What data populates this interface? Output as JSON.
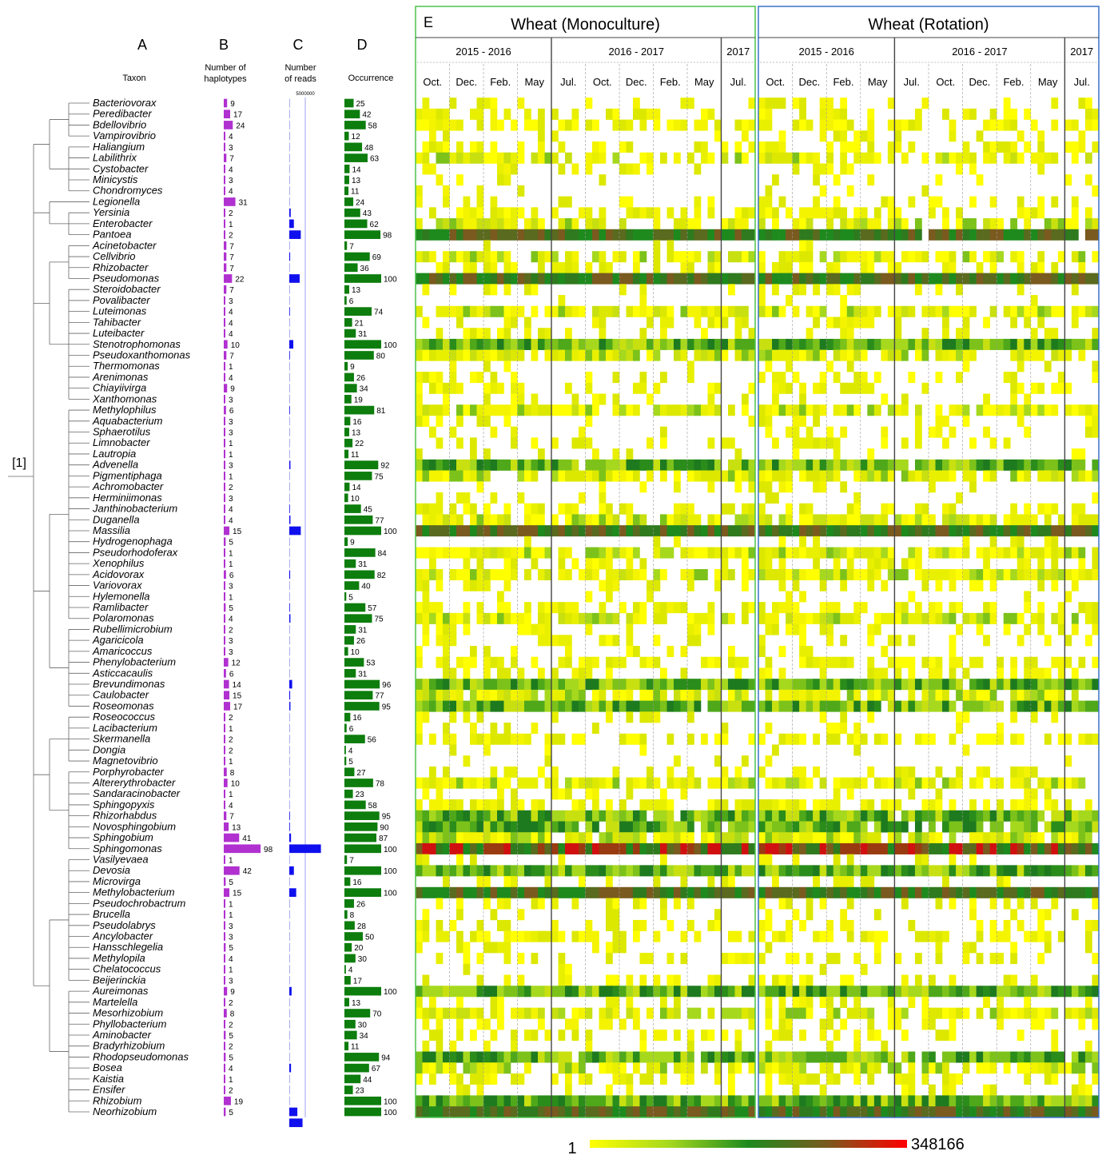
{
  "panels": {
    "a": "A",
    "b": "B",
    "c": "C",
    "d": "D",
    "e": "E"
  },
  "column_headers": {
    "taxon": "Taxon",
    "haplotypes": [
      "Number of",
      "haplotypes"
    ],
    "reads": [
      "Number",
      "of reads"
    ],
    "reads_tick": "5000000",
    "occurrence": "Occurrence"
  },
  "tree_root_label": "[1]",
  "heatmap": {
    "groups": [
      {
        "title": "Wheat (Monoculture)",
        "border_color": "#4cc24c",
        "periods": [
          {
            "label": "2015 - 2016",
            "months": [
              "Oct.",
              "Dec.",
              "Feb.",
              "May"
            ]
          },
          {
            "label": "2016 - 2017",
            "months": [
              "Jul.",
              "Oct.",
              "Dec.",
              "Feb.",
              "May"
            ]
          },
          {
            "label": "2017",
            "months": [
              "Jul."
            ]
          }
        ]
      },
      {
        "title": "Wheat (Rotation)",
        "border_color": "#3a73c8",
        "periods": [
          {
            "label": "2015 - 2016",
            "months": [
              "Oct.",
              "Dec.",
              "Feb.",
              "May"
            ]
          },
          {
            "label": "2016 - 2017",
            "months": [
              "Jul.",
              "Oct.",
              "Dec.",
              "Feb.",
              "May"
            ]
          },
          {
            "label": "2017",
            "months": [
              "Jul."
            ]
          }
        ]
      }
    ],
    "legend": {
      "min_label": "1",
      "max_label": "348166",
      "colors": [
        "#ffff00",
        "#a6d81e",
        "#1e8a1e",
        "#7a5a1e",
        "#ff0000"
      ]
    }
  },
  "chart_data": {
    "type": "table",
    "columns": [
      "Taxon",
      "Number of haplotypes",
      "Number of reads",
      "Occurrence"
    ],
    "taxa": [
      "Bacteriovorax",
      "Peredibacter",
      "Bdellovibrio",
      "Vampirovibrio",
      "Haliangium",
      "Labilithrix",
      "Cystobacter",
      "Minicystis",
      "Chondromyces",
      "Legionella",
      "Yersinia",
      "Enterobacter",
      "Pantoea",
      "Acinetobacter",
      "Cellvibrio",
      "Rhizobacter",
      "Pseudomonas",
      "Steroidobacter",
      "Povalibacter",
      "Luteimonas",
      "Tahibacter",
      "Luteibacter",
      "Stenotrophomonas",
      "Pseudoxanthomonas",
      "Thermomonas",
      "Arenimonas",
      "Chiayiivirga",
      "Xanthomonas",
      "Methylophilus",
      "Aquabacterium",
      "Sphaerotilus",
      "Limnobacter",
      "Lautropia",
      "Advenella",
      "Pigmentiphaga",
      "Achromobacter",
      "Herminiimonas",
      "Janthinobacterium",
      "Duganella",
      "Massilia",
      "Hydrogenophaga",
      "Pseudorhodoferax",
      "Xenophilus",
      "Acidovorax",
      "Variovorax",
      "Hylemonella",
      "Ramlibacter",
      "Polaromonas",
      "Rubellimicrobium",
      "Agaricicola",
      "Amaricoccus",
      "Phenylobacterium",
      "Asticcacaulis",
      "Brevundimonas",
      "Caulobacter",
      "Roseomonas",
      "Roseococcus",
      "Lacibacterium",
      "Skermanella",
      "Dongia",
      "Magnetovibrio",
      "Porphyrobacter",
      "Altererythrobacter",
      "Sandaracinobacter",
      "Sphingopyxis",
      "Rhizorhabdus",
      "Novosphingobium",
      "Sphingobium",
      "Sphingomonas",
      "Vasilyevaea",
      "Devosia",
      "Microvirga",
      "Methylobacterium",
      "Pseudochrobactrum",
      "Brucella",
      "Pseudolabrys",
      "Ancylobacter",
      "Hansschlegelia",
      "Methylopila",
      "Chelatococcus",
      "Beijerinckia",
      "Aureimonas",
      "Martelella",
      "Mesorhizobium",
      "Phyllobacterium",
      "Aminobacter",
      "Bradyrhizobium",
      "Rhodopseudomonas",
      "Bosea",
      "Kaistia",
      "Ensifer",
      "Rhizobium",
      "Neorhizobium"
    ],
    "haplotypes": [
      9,
      17,
      24,
      4,
      3,
      7,
      4,
      3,
      4,
      31,
      2,
      1,
      2,
      7,
      7,
      7,
      22,
      7,
      3,
      4,
      4,
      4,
      10,
      7,
      1,
      4,
      9,
      3,
      6,
      3,
      3,
      1,
      1,
      3,
      1,
      2,
      3,
      4,
      4,
      15,
      5,
      1,
      1,
      6,
      3,
      1,
      5,
      4,
      2,
      3,
      3,
      12,
      6,
      14,
      15,
      17,
      2,
      1,
      2,
      2,
      1,
      8,
      10,
      1,
      4,
      7,
      13,
      41,
      98,
      1,
      42,
      5,
      15,
      1,
      1,
      3,
      3,
      5,
      4,
      1,
      3,
      9,
      2,
      8,
      2,
      5,
      2,
      5,
      4,
      1,
      2,
      19,
      5
    ],
    "reads_estimate": [
      0,
      0,
      0,
      0,
      0,
      0,
      0,
      0,
      0,
      0,
      250000,
      800000,
      2000000,
      0,
      150000,
      0,
      1800000,
      0,
      0,
      60000,
      0,
      0,
      700000,
      80000,
      0,
      0,
      0,
      0,
      100000,
      0,
      0,
      0,
      0,
      200000,
      0,
      0,
      0,
      100000,
      200000,
      2000000,
      0,
      0,
      0,
      150000,
      0,
      0,
      80000,
      200000,
      0,
      0,
      0,
      0,
      0,
      500000,
      150000,
      200000,
      0,
      0,
      0,
      0,
      0,
      0,
      0,
      0,
      0,
      50000,
      100000,
      300000,
      5500000,
      0,
      800000,
      0,
      1200000,
      0,
      0,
      0,
      0,
      0,
      0,
      0,
      0,
      400000,
      0,
      0,
      0,
      0,
      0,
      0,
      300000,
      0,
      0,
      0,
      1400000,
      2300000
    ],
    "occurrence": [
      25,
      42,
      58,
      12,
      48,
      63,
      14,
      13,
      11,
      24,
      43,
      62,
      98,
      7,
      69,
      36,
      100,
      13,
      6,
      74,
      21,
      31,
      100,
      80,
      9,
      26,
      34,
      19,
      81,
      16,
      13,
      22,
      11,
      92,
      75,
      14,
      10,
      45,
      77,
      100,
      9,
      84,
      31,
      82,
      40,
      5,
      57,
      75,
      31,
      26,
      10,
      53,
      31,
      96,
      77,
      95,
      16,
      6,
      56,
      4,
      5,
      27,
      78,
      23,
      58,
      95,
      90,
      87,
      100,
      7,
      100,
      16,
      100,
      26,
      8,
      28,
      50,
      20,
      30,
      4,
      17,
      100,
      13,
      70,
      30,
      34,
      11,
      94,
      67,
      44,
      23,
      100,
      100
    ],
    "reads_axis_tick": 5000000,
    "heatmap_scale": {
      "min": 1,
      "max": 348166,
      "scale": "log"
    },
    "heatmap_samples_per_month": 5
  }
}
